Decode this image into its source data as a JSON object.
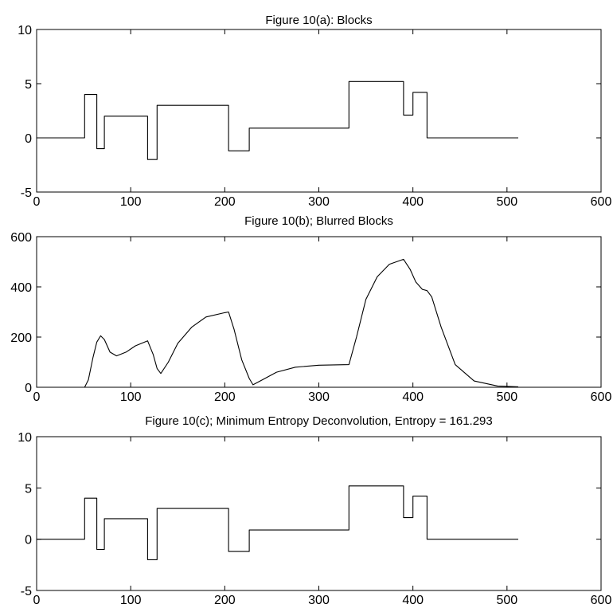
{
  "chart_data": [
    {
      "type": "line",
      "title": "Figure 10(a): Blocks",
      "xlim": [
        0,
        600
      ],
      "ylim": [
        -5,
        10
      ],
      "xticks": [
        "0",
        "100",
        "200",
        "300",
        "400",
        "500",
        "600"
      ],
      "yticks": [
        "-5",
        "0",
        "5",
        "10"
      ],
      "series": [
        {
          "x": [
            0,
            51,
            51,
            64,
            64,
            72,
            72,
            118,
            118,
            128,
            128,
            204,
            204,
            226,
            226,
            332,
            332,
            390,
            390,
            400,
            400,
            415,
            415,
            512
          ],
          "y": [
            0,
            0,
            4,
            4,
            -1,
            -1,
            2,
            2,
            -2,
            -2,
            3,
            3,
            -1.2,
            -1.2,
            0.9,
            0.9,
            5.2,
            5.2,
            2.1,
            2.1,
            4.2,
            4.2,
            0,
            0
          ]
        }
      ]
    },
    {
      "type": "line",
      "title": "Figure 10(b); Blurred Blocks",
      "xlim": [
        0,
        600
      ],
      "ylim": [
        0,
        600
      ],
      "xticks": [
        "0",
        "100",
        "200",
        "300",
        "400",
        "500",
        "600"
      ],
      "yticks": [
        "0",
        "200",
        "400",
        "600"
      ],
      "series": [
        {
          "x": [
            0,
            51,
            55,
            60,
            64,
            68,
            72,
            78,
            85,
            95,
            105,
            118,
            124,
            128,
            132,
            140,
            150,
            165,
            180,
            200,
            204,
            210,
            218,
            226,
            230,
            240,
            255,
            275,
            300,
            332,
            340,
            350,
            362,
            375,
            390,
            397,
            403,
            410,
            415,
            420,
            430,
            445,
            465,
            490,
            512
          ],
          "y": [
            0,
            0,
            30,
            120,
            180,
            205,
            190,
            140,
            125,
            140,
            165,
            185,
            130,
            75,
            55,
            100,
            175,
            240,
            280,
            297,
            300,
            230,
            110,
            35,
            10,
            30,
            60,
            80,
            88,
            90,
            200,
            350,
            440,
            490,
            510,
            470,
            420,
            390,
            385,
            360,
            240,
            90,
            25,
            5,
            2
          ]
        }
      ]
    },
    {
      "type": "line",
      "title": "Figure 10(c); Minimum Entropy Deconvolution, Entropy = 161.293",
      "xlim": [
        0,
        600
      ],
      "ylim": [
        -5,
        10
      ],
      "xticks": [
        "0",
        "100",
        "200",
        "300",
        "400",
        "500",
        "600"
      ],
      "yticks": [
        "-5",
        "0",
        "5",
        "10"
      ],
      "series": [
        {
          "x": [
            0,
            51,
            51,
            64,
            64,
            72,
            72,
            118,
            118,
            128,
            128,
            204,
            204,
            226,
            226,
            332,
            332,
            390,
            390,
            400,
            400,
            415,
            415,
            512
          ],
          "y": [
            0,
            0,
            4,
            4,
            -1,
            -1,
            2,
            2,
            -2,
            -2,
            3,
            3,
            -1.2,
            -1.2,
            0.9,
            0.9,
            5.2,
            5.2,
            2.1,
            2.1,
            4.2,
            4.2,
            0,
            0
          ]
        }
      ]
    }
  ]
}
